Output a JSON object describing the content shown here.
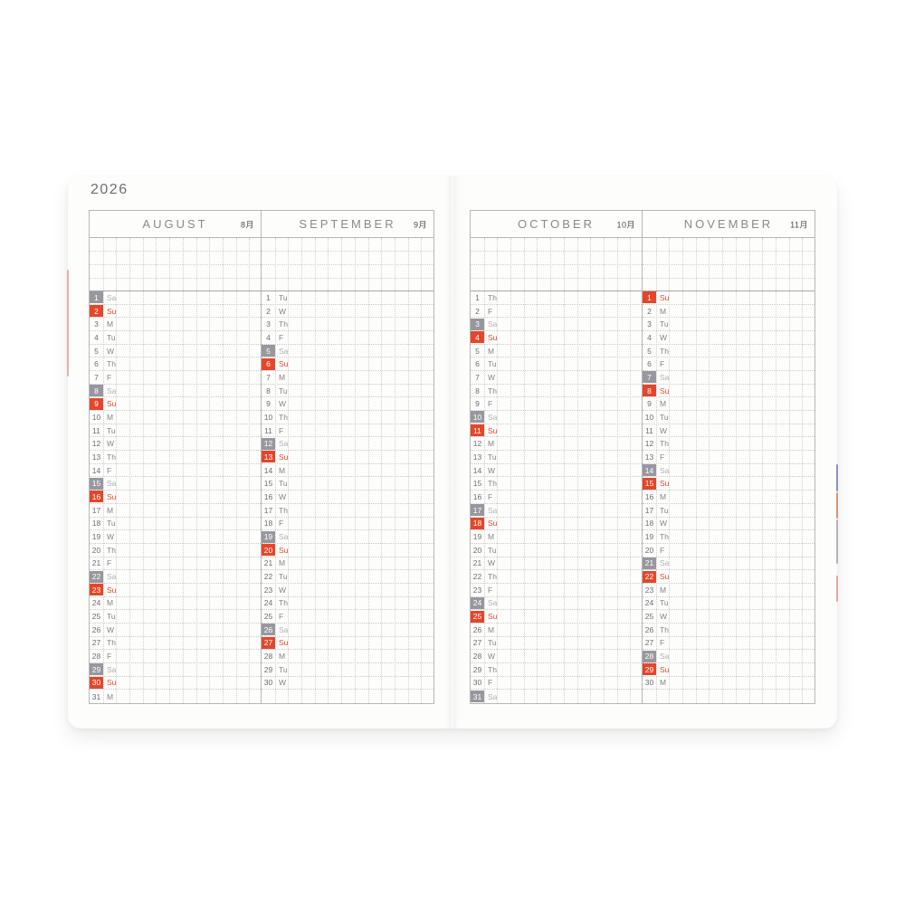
{
  "year": "2026",
  "colors": {
    "saturday_bg": "#98979f",
    "sunday_bg": "#e5462a",
    "saturday_weekday_text": "#b0b0b8",
    "sunday_weekday_text": "#e5462a",
    "normal_text": "#6e6e74",
    "paper": "#fdfdfb",
    "grid_dotted": "#cfcfcd",
    "grid_solid": "#b7b7b5"
  },
  "pages": [
    {
      "year_label": "2026",
      "months": [
        {
          "name": "AUGUST",
          "jp_label": "8月",
          "days": [
            [
              1,
              "Sa"
            ],
            [
              2,
              "Su"
            ],
            [
              3,
              "M"
            ],
            [
              4,
              "Tu"
            ],
            [
              5,
              "W"
            ],
            [
              6,
              "Th"
            ],
            [
              7,
              "F"
            ],
            [
              8,
              "Sa"
            ],
            [
              9,
              "Su"
            ],
            [
              10,
              "M"
            ],
            [
              11,
              "Tu"
            ],
            [
              12,
              "W"
            ],
            [
              13,
              "Th"
            ],
            [
              14,
              "F"
            ],
            [
              15,
              "Sa"
            ],
            [
              16,
              "Su"
            ],
            [
              17,
              "M"
            ],
            [
              18,
              "Tu"
            ],
            [
              19,
              "W"
            ],
            [
              20,
              "Th"
            ],
            [
              21,
              "F"
            ],
            [
              22,
              "Sa"
            ],
            [
              23,
              "Su"
            ],
            [
              24,
              "M"
            ],
            [
              25,
              "Tu"
            ],
            [
              26,
              "W"
            ],
            [
              27,
              "Th"
            ],
            [
              28,
              "F"
            ],
            [
              29,
              "Sa"
            ],
            [
              30,
              "Su"
            ],
            [
              31,
              "M"
            ]
          ]
        },
        {
          "name": "SEPTEMBER",
          "jp_label": "9月",
          "days": [
            [
              1,
              "Tu"
            ],
            [
              2,
              "W"
            ],
            [
              3,
              "Th"
            ],
            [
              4,
              "F"
            ],
            [
              5,
              "Sa"
            ],
            [
              6,
              "Su"
            ],
            [
              7,
              "M"
            ],
            [
              8,
              "Tu"
            ],
            [
              9,
              "W"
            ],
            [
              10,
              "Th"
            ],
            [
              11,
              "F"
            ],
            [
              12,
              "Sa"
            ],
            [
              13,
              "Su"
            ],
            [
              14,
              "M"
            ],
            [
              15,
              "Tu"
            ],
            [
              16,
              "W"
            ],
            [
              17,
              "Th"
            ],
            [
              18,
              "F"
            ],
            [
              19,
              "Sa"
            ],
            [
              20,
              "Su"
            ],
            [
              21,
              "M"
            ],
            [
              22,
              "Tu"
            ],
            [
              23,
              "W"
            ],
            [
              24,
              "Th"
            ],
            [
              25,
              "F"
            ],
            [
              26,
              "Sa"
            ],
            [
              27,
              "Su"
            ],
            [
              28,
              "M"
            ],
            [
              29,
              "Tu"
            ],
            [
              30,
              "W"
            ]
          ]
        }
      ]
    },
    {
      "year_label": "",
      "months": [
        {
          "name": "OCTOBER",
          "jp_label": "10月",
          "days": [
            [
              1,
              "Th"
            ],
            [
              2,
              "F"
            ],
            [
              3,
              "Sa"
            ],
            [
              4,
              "Su"
            ],
            [
              5,
              "M"
            ],
            [
              6,
              "Tu"
            ],
            [
              7,
              "W"
            ],
            [
              8,
              "Th"
            ],
            [
              9,
              "F"
            ],
            [
              10,
              "Sa"
            ],
            [
              11,
              "Su"
            ],
            [
              12,
              "M"
            ],
            [
              13,
              "Tu"
            ],
            [
              14,
              "W"
            ],
            [
              15,
              "Th"
            ],
            [
              16,
              "F"
            ],
            [
              17,
              "Sa"
            ],
            [
              18,
              "Su"
            ],
            [
              19,
              "M"
            ],
            [
              20,
              "Tu"
            ],
            [
              21,
              "W"
            ],
            [
              22,
              "Th"
            ],
            [
              23,
              "F"
            ],
            [
              24,
              "Sa"
            ],
            [
              25,
              "Su"
            ],
            [
              26,
              "M"
            ],
            [
              27,
              "Tu"
            ],
            [
              28,
              "W"
            ],
            [
              29,
              "Th"
            ],
            [
              30,
              "F"
            ],
            [
              31,
              "Sa"
            ]
          ]
        },
        {
          "name": "NOVEMBER",
          "jp_label": "11月",
          "days": [
            [
              1,
              "Su"
            ],
            [
              2,
              "M"
            ],
            [
              3,
              "Tu"
            ],
            [
              4,
              "W"
            ],
            [
              5,
              "Th"
            ],
            [
              6,
              "F"
            ],
            [
              7,
              "Sa"
            ],
            [
              8,
              "Su"
            ],
            [
              9,
              "M"
            ],
            [
              10,
              "Tu"
            ],
            [
              11,
              "W"
            ],
            [
              12,
              "Th"
            ],
            [
              13,
              "F"
            ],
            [
              14,
              "Sa"
            ],
            [
              15,
              "Su"
            ],
            [
              16,
              "M"
            ],
            [
              17,
              "Tu"
            ],
            [
              18,
              "W"
            ],
            [
              19,
              "Th"
            ],
            [
              20,
              "F"
            ],
            [
              21,
              "Sa"
            ],
            [
              22,
              "Su"
            ],
            [
              23,
              "M"
            ],
            [
              24,
              "Tu"
            ],
            [
              25,
              "W"
            ],
            [
              26,
              "Th"
            ],
            [
              27,
              "F"
            ],
            [
              28,
              "Sa"
            ],
            [
              29,
              "Su"
            ],
            [
              30,
              "M"
            ]
          ]
        }
      ]
    }
  ],
  "edge_marks": {
    "left_red": "#e4afaa",
    "right_blue": "#8f90bb",
    "right_orange": "#cf9a74",
    "right_gray": "#b3b3bc",
    "right_pink": "#e0a9a4"
  }
}
